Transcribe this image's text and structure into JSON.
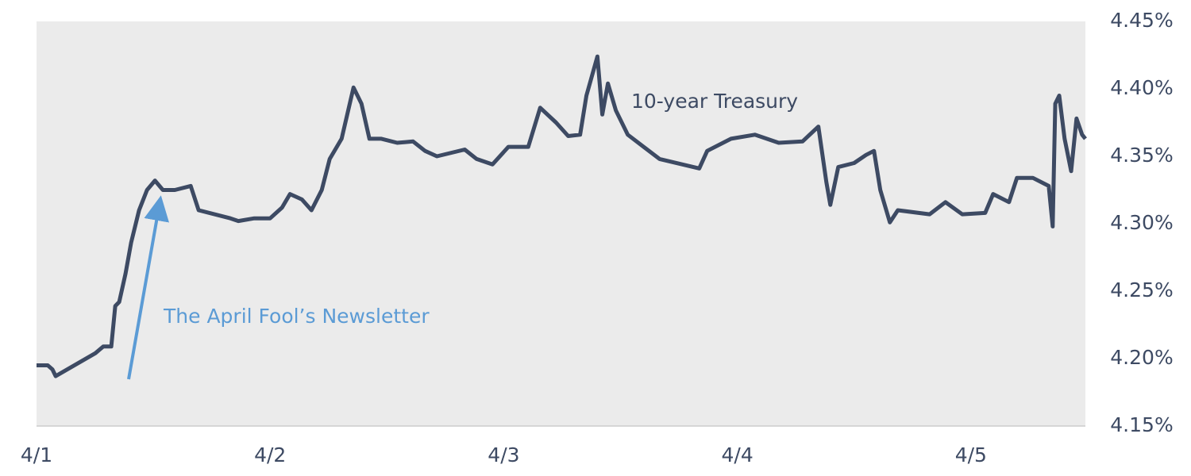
{
  "chart_data": {
    "type": "line",
    "series": [
      {
        "name": "10-year Treasury",
        "color": "#3d4a63",
        "x": [
          0,
          0.048,
          0.068,
          0.082,
          0.252,
          0.286,
          0.32,
          0.337,
          0.354,
          0.381,
          0.405,
          0.439,
          0.473,
          0.507,
          0.541,
          0.592,
          0.66,
          0.694,
          0.83,
          0.864,
          0.932,
          1.0,
          1.051,
          1.085,
          1.136,
          1.177,
          1.221,
          1.255,
          1.306,
          1.357,
          1.391,
          1.425,
          1.476,
          1.544,
          1.612,
          1.663,
          1.714,
          1.833,
          1.884,
          1.952,
          2.02,
          2.105,
          2.156,
          2.224,
          2.276,
          2.327,
          2.354,
          2.401,
          2.422,
          2.446,
          2.48,
          2.531,
          2.599,
          2.667,
          2.837,
          2.871,
          2.973,
          3.075,
          3.177,
          3.279,
          3.347,
          3.381,
          3.398,
          3.432,
          3.5,
          3.551,
          3.585,
          3.612,
          3.653,
          3.687,
          3.823,
          3.891,
          3.963,
          4.061,
          4.095,
          4.163,
          4.197,
          4.265,
          4.333,
          4.35,
          4.361,
          4.378,
          4.401,
          4.429,
          4.452,
          4.476,
          4.49
        ],
        "values": [
          4.195,
          4.195,
          4.192,
          4.187,
          4.204,
          4.209,
          4.209,
          4.239,
          4.242,
          4.263,
          4.286,
          4.31,
          4.325,
          4.332,
          4.325,
          4.325,
          4.328,
          4.31,
          4.304,
          4.302,
          4.304,
          4.304,
          4.312,
          4.322,
          4.318,
          4.31,
          4.325,
          4.348,
          4.363,
          4.401,
          4.389,
          4.363,
          4.363,
          4.36,
          4.361,
          4.354,
          4.35,
          4.355,
          4.348,
          4.344,
          4.357,
          4.357,
          4.386,
          4.375,
          4.365,
          4.366,
          4.395,
          4.424,
          4.381,
          4.404,
          4.384,
          4.366,
          4.357,
          4.348,
          4.341,
          4.354,
          4.363,
          4.366,
          4.36,
          4.361,
          4.372,
          4.331,
          4.314,
          4.342,
          4.345,
          4.351,
          4.354,
          4.325,
          4.301,
          4.31,
          4.307,
          4.316,
          4.307,
          4.308,
          4.322,
          4.316,
          4.334,
          4.334,
          4.328,
          4.298,
          4.389,
          4.395,
          4.363,
          4.339,
          4.378,
          4.366,
          4.363
        ]
      }
    ],
    "annotations": [
      {
        "text": "10-year Treasury"
      },
      {
        "text": "The April Fool’s Newsletter",
        "color": "#5b9bd5"
      }
    ],
    "xlim": [
      0,
      4.49
    ],
    "xticks": [
      {
        "value": 0,
        "label": "4/1"
      },
      {
        "value": 1,
        "label": "4/2"
      },
      {
        "value": 2,
        "label": "4/3"
      },
      {
        "value": 3,
        "label": "4/4"
      },
      {
        "value": 4,
        "label": "4/5"
      }
    ],
    "ylim": [
      4.15,
      4.45
    ],
    "yticks": [
      {
        "value": 4.15,
        "label": "4.15%"
      },
      {
        "value": 4.2,
        "label": "4.20%"
      },
      {
        "value": 4.25,
        "label": "4.25%"
      },
      {
        "value": 4.3,
        "label": "4.30%"
      },
      {
        "value": 4.35,
        "label": "4.35%"
      },
      {
        "value": 4.4,
        "label": "4.40%"
      },
      {
        "value": 4.45,
        "label": "4.45%"
      }
    ],
    "background": "#ebebeb"
  }
}
